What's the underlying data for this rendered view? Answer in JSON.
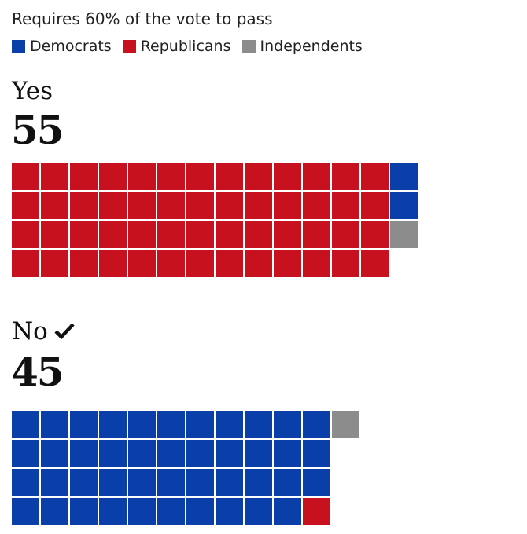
{
  "requirement": "Requires 60% of the vote to pass",
  "legend": [
    {
      "label": "Democrats",
      "color": "#0a3ea8"
    },
    {
      "label": "Republicans",
      "color": "#c8111e"
    },
    {
      "label": "Independents",
      "color": "#8c8c8c"
    }
  ],
  "chart_data": {
    "type": "waffle",
    "title": "",
    "groups": [
      {
        "label": "Yes",
        "total": "55",
        "passed": false,
        "columns": 14,
        "series": [
          {
            "name": "Republicans",
            "value": 52
          },
          {
            "name": "Democrats",
            "value": 2
          },
          {
            "name": "Independents",
            "value": 1
          }
        ]
      },
      {
        "label": "No",
        "total": "45",
        "passed": true,
        "columns": 12,
        "series": [
          {
            "name": "Democrats",
            "value": 43
          },
          {
            "name": "Independents",
            "value": 1
          },
          {
            "name": "Republicans",
            "value": 1
          }
        ]
      }
    ]
  }
}
